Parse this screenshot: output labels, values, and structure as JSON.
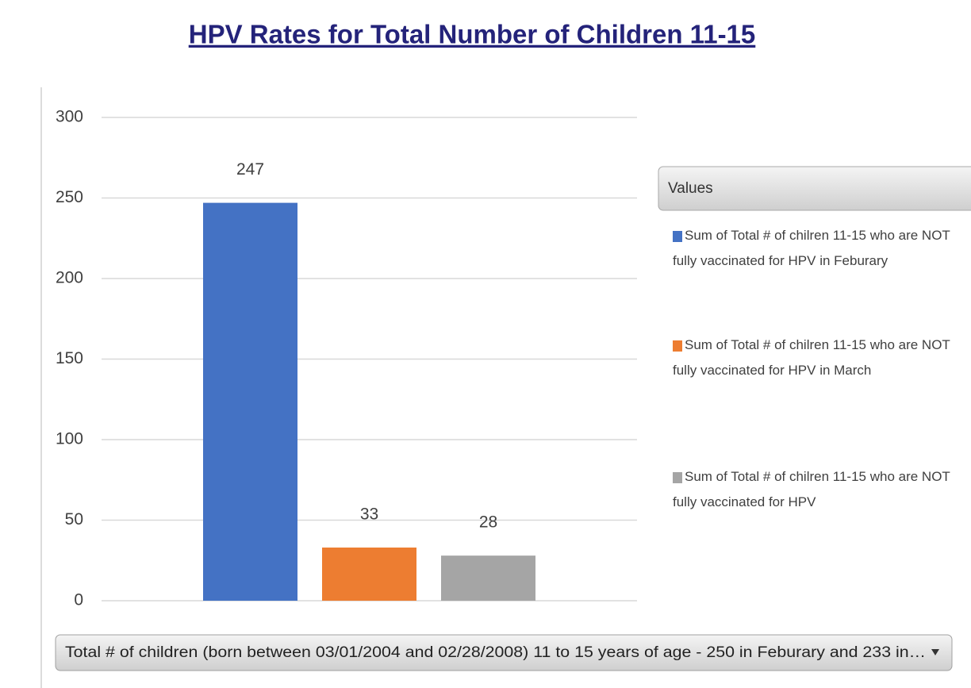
{
  "chart_data": {
    "type": "bar",
    "title": "HPV Rates for Total Number of Children 11-15",
    "categories": [
      null
    ],
    "series": [
      {
        "name": "Sum of Total # of chilren 11-15 who are NOT fully vaccinated for HPV in Feburary",
        "color": "#4472c4",
        "values": [
          247
        ]
      },
      {
        "name": "Sum of Total # of chilren 11-15 who are NOT fully vaccinated for HPV in March",
        "color": "#ed7d31",
        "values": [
          33
        ]
      },
      {
        "name": "Sum of Total # of chilren 11-15 who are NOT fully vaccinated for HPV",
        "color": "#a5a5a5",
        "values": [
          28
        ]
      }
    ],
    "legend_title": "Values",
    "axis_field": "Total # of children (born between 03/01/2004 and 02/28/2008) 11 to 15 years of age - 250 in Feburary and 233 in…",
    "ylim": [
      0,
      300
    ],
    "yticks": [
      0,
      50,
      100,
      150,
      200,
      250,
      300
    ],
    "grid": true,
    "legend": "right"
  }
}
